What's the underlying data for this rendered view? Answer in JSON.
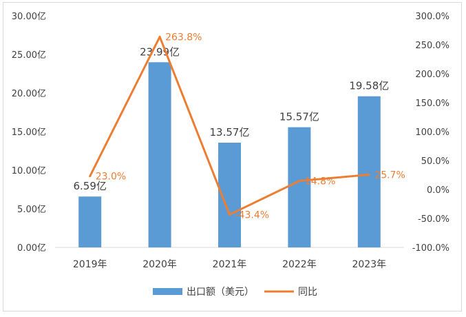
{
  "chart_data": {
    "type": "bar",
    "categories": [
      "2019年",
      "2020年",
      "2021年",
      "2022年",
      "2023年"
    ],
    "series": [
      {
        "name": "出口额（美元）",
        "type": "bar",
        "axis": "left",
        "values": [
          6.59,
          23.99,
          13.57,
          15.57,
          19.58
        ],
        "labels": [
          "6.59亿",
          "23.99亿",
          "13.57亿",
          "15.57亿",
          "19.58亿"
        ]
      },
      {
        "name": "同比",
        "type": "line",
        "axis": "right",
        "values": [
          23.0,
          263.8,
          -43.4,
          14.8,
          25.7
        ],
        "labels": [
          "23.0%",
          "263.8%",
          "-43.4%",
          "14.8%",
          "25.7%"
        ]
      }
    ],
    "y_left": {
      "ylim": [
        0,
        30
      ],
      "ticks": [
        0,
        5,
        10,
        15,
        20,
        25,
        30
      ],
      "tick_labels": [
        "0.00亿",
        "5.00亿",
        "10.00亿",
        "15.00亿",
        "20.00亿",
        "25.00亿",
        "30.00亿"
      ]
    },
    "y_right": {
      "ylim": [
        -100,
        300
      ],
      "ticks": [
        -100,
        -50,
        0,
        50,
        100,
        150,
        200,
        250,
        300
      ],
      "tick_labels": [
        "-100.0%",
        "-50.0%",
        "0.0%",
        "50.0%",
        "100.0%",
        "150.0%",
        "200.0%",
        "250.0%",
        "300.0%"
      ]
    },
    "grid": false,
    "legend_position": "bottom",
    "colors": {
      "bar": "#5b9bd5",
      "line": "#ed7d31",
      "text": "#404040"
    }
  }
}
